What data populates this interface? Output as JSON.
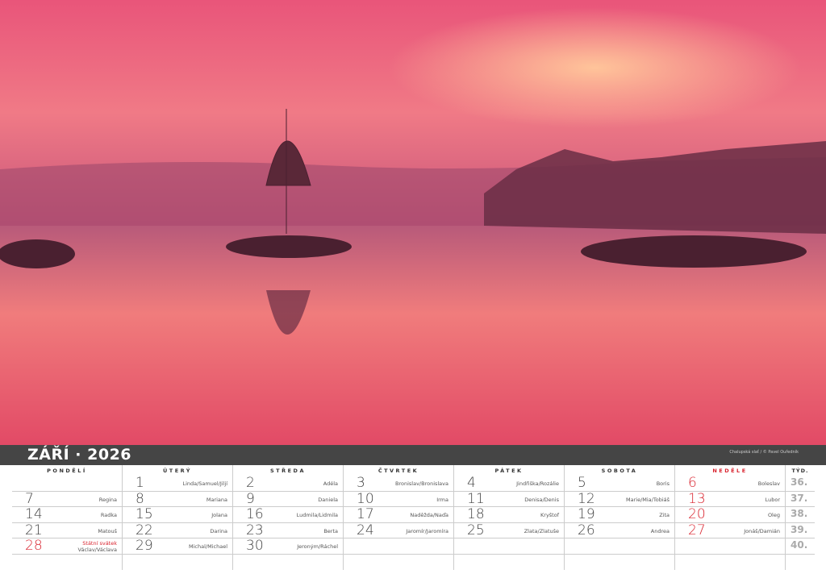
{
  "header": {
    "title": "ZÁŘÍ · 2026",
    "credit": "Chalupská slať / © Pavel Ouředník"
  },
  "day_headers": [
    "PONDĚLÍ",
    "ÚTERÝ",
    "STŘEDA",
    "ČTVRTEK",
    "PÁTEK",
    "SOBOTA",
    "NEDĚLE"
  ],
  "week_header": "TÝD.",
  "colors": {
    "bar": "#454545",
    "sunday": "#d9232e"
  },
  "weeks": [
    {
      "no": "36.",
      "days": [
        null,
        {
          "d": "1",
          "n": "Linda/Samuel/Jiljí"
        },
        {
          "d": "2",
          "n": "Adéla"
        },
        {
          "d": "3",
          "n": "Bronislav/Bronislava"
        },
        {
          "d": "4",
          "n": "Jindřiška/Rozálie"
        },
        {
          "d": "5",
          "n": "Boris"
        },
        {
          "d": "6",
          "n": "Boleslav"
        }
      ]
    },
    {
      "no": "37.",
      "days": [
        {
          "d": "7",
          "n": "Regina"
        },
        {
          "d": "8",
          "n": "Mariana"
        },
        {
          "d": "9",
          "n": "Daniela"
        },
        {
          "d": "10",
          "n": "Irma"
        },
        {
          "d": "11",
          "n": "Denisa/Denis"
        },
        {
          "d": "12",
          "n": "Marie/Mia/Tobiáš"
        },
        {
          "d": "13",
          "n": "Lubor"
        }
      ]
    },
    {
      "no": "38.",
      "days": [
        {
          "d": "14",
          "n": "Radka"
        },
        {
          "d": "15",
          "n": "Jolana"
        },
        {
          "d": "16",
          "n": "Ludmila/Lidmila"
        },
        {
          "d": "17",
          "n": "Naděžda/Naďa"
        },
        {
          "d": "18",
          "n": "Kryštof"
        },
        {
          "d": "19",
          "n": "Zita"
        },
        {
          "d": "20",
          "n": "Oleg"
        }
      ]
    },
    {
      "no": "39.",
      "days": [
        {
          "d": "21",
          "n": "Matouš"
        },
        {
          "d": "22",
          "n": "Darina"
        },
        {
          "d": "23",
          "n": "Berta"
        },
        {
          "d": "24",
          "n": "Jaromír/Jaromíra"
        },
        {
          "d": "25",
          "n": "Zlata/Zlatuše"
        },
        {
          "d": "26",
          "n": "Andrea"
        },
        {
          "d": "27",
          "n": "Jonáš/Damián"
        }
      ]
    },
    {
      "no": "40.",
      "days": [
        {
          "d": "28",
          "n": "Václav/Václava",
          "holiday": "Státní svátek"
        },
        {
          "d": "29",
          "n": "Michal/Michael"
        },
        {
          "d": "30",
          "n": "Jeroným/Ráchel"
        },
        null,
        null,
        null,
        null
      ]
    }
  ]
}
